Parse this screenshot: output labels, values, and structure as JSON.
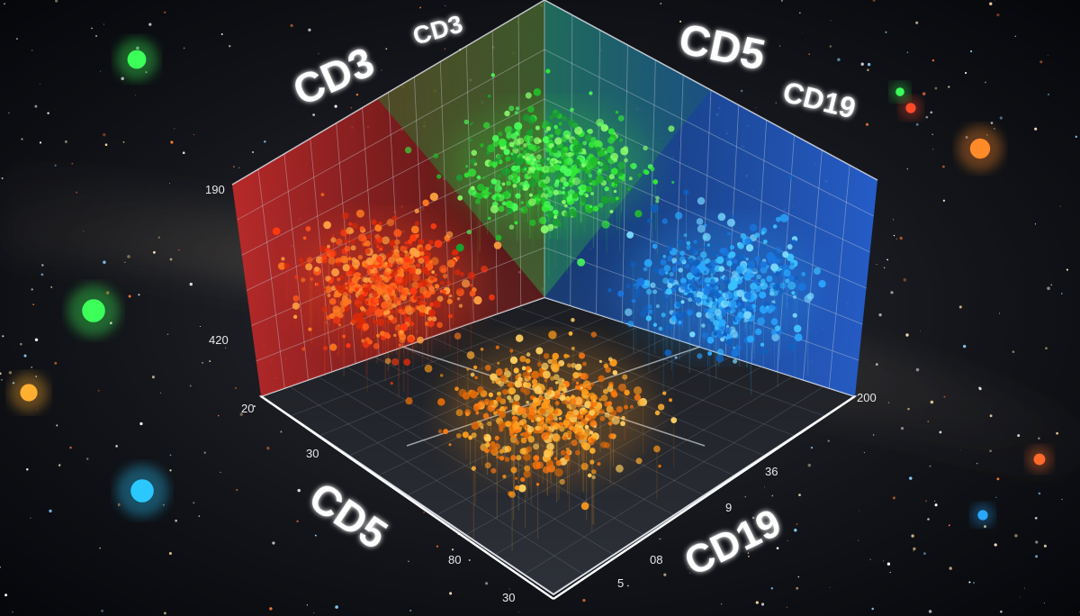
{
  "labels": {
    "cd3_big": "CD3",
    "cd3_small": "CD3",
    "cd5_top": "CD5",
    "cd19_top": "CD19",
    "cd5_bottom": "CD5",
    "cd19_bottom": "CD19"
  },
  "ticks": {
    "left_wall_top": "190",
    "left_wall_mid": "420",
    "left_corner": "20",
    "front_left_1": "30",
    "front_left_2": "80",
    "front_left_3": "30",
    "right_corner": "200",
    "front_right_1": "36",
    "front_right_2": "9",
    "front_right_3": "08",
    "front_right_4": "5"
  },
  "chart_data": {
    "type": "scatter",
    "projection": "3d",
    "axes": [
      "CD3",
      "CD5",
      "CD19"
    ],
    "grid": true,
    "series": [
      {
        "name": "",
        "color": "#ff4a12",
        "quadrant": "left"
      },
      {
        "name": "",
        "color": "#38e83a",
        "quadrant": "back"
      },
      {
        "name": "",
        "color": "#2aa8ff",
        "quadrant": "right"
      },
      {
        "name": "",
        "color": "#ff9a1a",
        "quadrant": "front"
      }
    ]
  },
  "colors": {
    "wall_left": "#b3242a",
    "wall_back": "#1f8a3a",
    "wall_right": "#1d4fb5",
    "floor": "#23262c",
    "grid_line": "#9aa3ad"
  }
}
